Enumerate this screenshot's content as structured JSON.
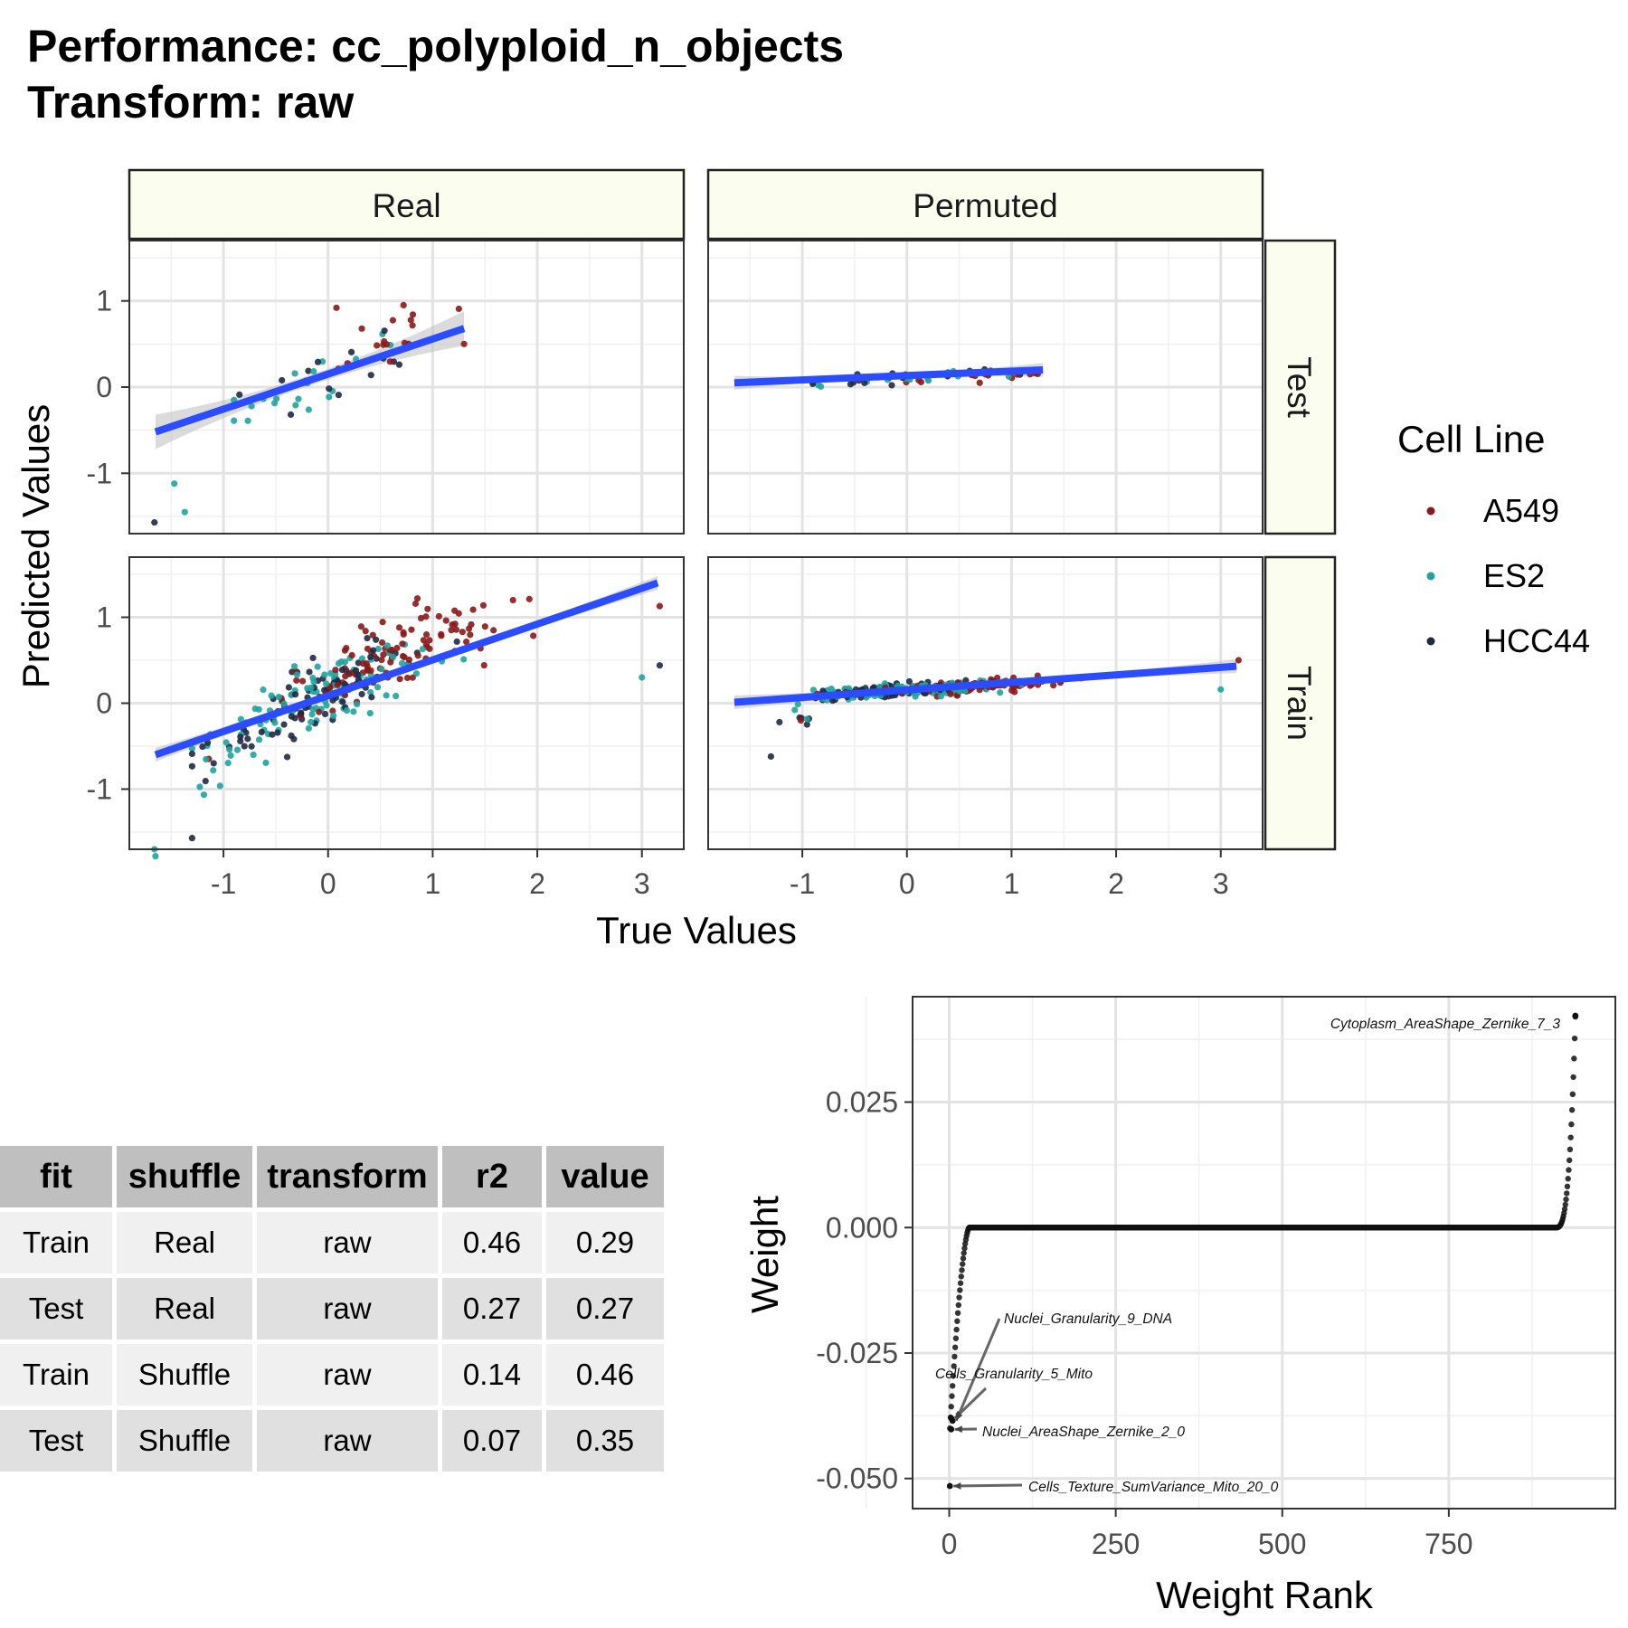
{
  "title": {
    "line1": "Performance: cc_polyploid_n_objects",
    "line2": "Transform: raw"
  },
  "colors": {
    "A549": "#8b1a1a",
    "ES2": "#20a39e",
    "HCC44": "#1f2a44",
    "fit_line": "#2b4cff",
    "strip_fill": "#fbfdee"
  },
  "chart_data": [
    {
      "type": "scatter",
      "facets": {
        "columns": [
          "Real",
          "Permuted"
        ],
        "rows": [
          "Test",
          "Train"
        ]
      },
      "xlabel": "True Values",
      "ylabel": "Predicted Values",
      "xlim": [
        -1.9,
        3.4
      ],
      "ylim": [
        -1.7,
        1.7
      ],
      "x_ticks": [
        "-1",
        "0",
        "1",
        "2",
        "3"
      ],
      "y_ticks": [
        "1",
        "0",
        "-1"
      ],
      "legend": {
        "title": "Cell Line",
        "entries": [
          "A549",
          "ES2",
          "HCC44"
        ],
        "placement": "right"
      },
      "fit_lines": [
        {
          "facet": "Real-Test",
          "x": [
            -1.65,
            1.3
          ],
          "y": [
            -0.52,
            0.68
          ]
        },
        {
          "facet": "Permuted-Test",
          "x": [
            -1.65,
            1.3
          ],
          "y": [
            0.05,
            0.2
          ]
        },
        {
          "facet": "Real-Train",
          "x": [
            -1.65,
            3.15
          ],
          "y": [
            -0.6,
            1.4
          ]
        },
        {
          "facet": "Permuted-Train",
          "x": [
            -1.65,
            3.15
          ],
          "y": [
            0.01,
            0.43
          ]
        }
      ],
      "highlighted_points": [
        {
          "facet": "Real-Test",
          "series": "HCC44",
          "x": -1.66,
          "y": -1.57
        },
        {
          "facet": "Real-Test",
          "series": "ES2",
          "x": -1.47,
          "y": -1.12
        },
        {
          "facet": "Real-Test",
          "series": "ES2",
          "x": -1.37,
          "y": -1.45
        },
        {
          "facet": "Real-Test",
          "series": "A549",
          "x": 0.08,
          "y": 0.92
        },
        {
          "facet": "Real-Test",
          "series": "A549",
          "x": 1.3,
          "y": 0.5
        },
        {
          "facet": "Real-Train",
          "series": "ES2",
          "x": -1.66,
          "y": -1.7
        },
        {
          "facet": "Real-Train",
          "series": "ES2",
          "x": -1.65,
          "y": -1.78
        },
        {
          "facet": "Real-Train",
          "series": "HCC44",
          "x": -1.3,
          "y": -1.57
        },
        {
          "facet": "Real-Train",
          "series": "ES2",
          "x": 3.0,
          "y": 0.3
        },
        {
          "facet": "Real-Train",
          "series": "HCC44",
          "x": 3.17,
          "y": 0.44
        },
        {
          "facet": "Real-Train",
          "series": "A549",
          "x": 3.17,
          "y": 1.13
        },
        {
          "facet": "Permuted-Train",
          "series": "HCC44",
          "x": -1.3,
          "y": -0.62
        },
        {
          "facet": "Permuted-Train",
          "series": "A549",
          "x": 3.17,
          "y": 0.5
        },
        {
          "facet": "Permuted-Train",
          "series": "ES2",
          "x": 3.0,
          "y": 0.16
        }
      ]
    },
    {
      "type": "scatter",
      "xlabel": "Weight Rank",
      "ylabel": "Weight",
      "xlim": [
        -55,
        1000
      ],
      "ylim": [
        -0.056,
        0.046
      ],
      "x_ticks": [
        "0",
        "250",
        "500",
        "750"
      ],
      "y_ticks": [
        "0.025",
        "0.000",
        "-0.025",
        "-0.050"
      ],
      "n_points": 940,
      "annotations": [
        {
          "label": "Cytoplasm_AreaShape_Zernike_7_3",
          "x": 940,
          "y": 0.0422
        },
        {
          "label": "Nuclei_Granularity_9_DNA",
          "x": 5,
          "y": -0.0385
        },
        {
          "label": "Cells_Granularity_5_Mito",
          "x": 3,
          "y": -0.038
        },
        {
          "label": "Nuclei_AreaShape_Zernike_2_0",
          "x": 3,
          "y": -0.0402
        },
        {
          "label": "Cells_Texture_SumVariance_Mito_20_0",
          "x": 1,
          "y": -0.0515
        }
      ]
    }
  ],
  "table": {
    "headers": [
      "fit",
      "shuffle",
      "transform",
      "r2",
      "value"
    ],
    "rows": [
      [
        "Train",
        "Real",
        "raw",
        "0.46",
        "0.29"
      ],
      [
        "Test",
        "Real",
        "raw",
        "0.27",
        "0.27"
      ],
      [
        "Train",
        "Shuffle",
        "raw",
        "0.14",
        "0.46"
      ],
      [
        "Test",
        "Shuffle",
        "raw",
        "0.07",
        "0.35"
      ]
    ]
  }
}
